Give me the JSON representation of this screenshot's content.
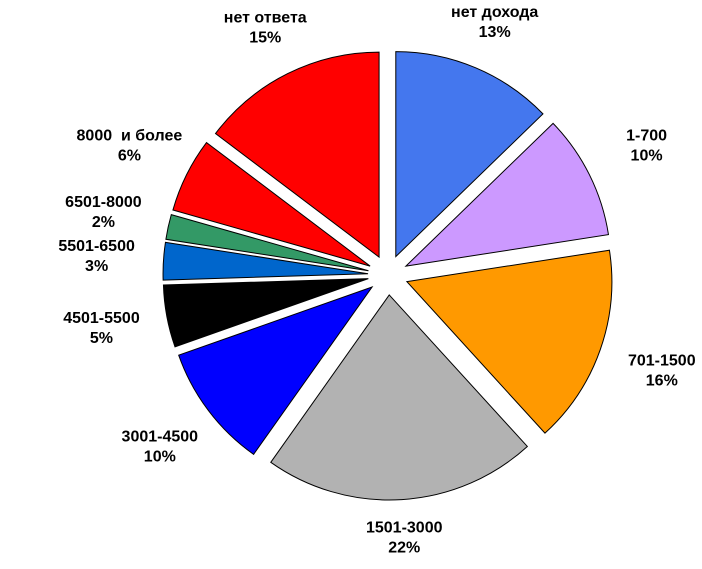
{
  "chart_data": {
    "type": "pie",
    "categories": [
      "нет дохода",
      "1-700",
      "701-1500",
      "1501-3000",
      "3001-4500",
      "4501-5500",
      "5501-6500",
      "6501-8000",
      "8000  и более",
      "нет ответа"
    ],
    "values": [
      13,
      10,
      16,
      22,
      10,
      5,
      3,
      2,
      6,
      15
    ],
    "value_labels": [
      "13%",
      "10%",
      "16%",
      "22%",
      "10%",
      "5%",
      "3%",
      "2%",
      "6%",
      "15%"
    ],
    "colors": [
      "#4477ee",
      "#cc99ff",
      "#ff9900",
      "#b2b2b2",
      "#0000ff",
      "#000000",
      "#0066cc",
      "#339966",
      "#ff0000",
      "#ff0000"
    ]
  }
}
